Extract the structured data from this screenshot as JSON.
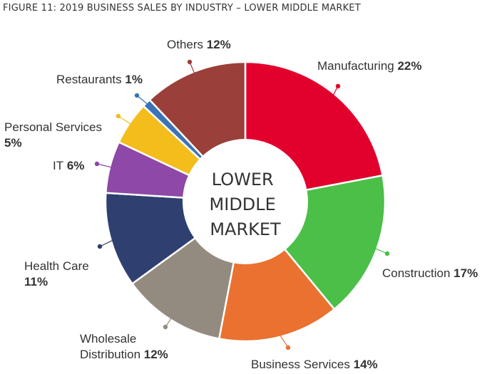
{
  "figure_title": "FIGURE 11: 2019 BUSINESS SALES BY INDUSTRY – LOWER MIDDLE MARKET",
  "chart_data": {
    "type": "pie",
    "variant": "donut",
    "title": "FIGURE 11: 2019 BUSINESS SALES BY INDUSTRY – LOWER MIDDLE MARKET",
    "center_label": [
      "LOWER",
      "MIDDLE",
      "MARKET"
    ],
    "unit": "%",
    "slices": [
      {
        "name": "Manufacturing",
        "label_lines": [
          "Manufacturing"
        ],
        "value": 22,
        "percent_text": "22%",
        "color": "#e2002d"
      },
      {
        "name": "Construction",
        "label_lines": [
          "Construction"
        ],
        "value": 17,
        "percent_text": "17%",
        "color": "#4bbf47"
      },
      {
        "name": "Business Services",
        "label_lines": [
          "Business Services"
        ],
        "value": 14,
        "percent_text": "14%",
        "color": "#ea7130"
      },
      {
        "name": "Wholesale Distribution",
        "label_lines": [
          "Wholesale",
          "Distribution"
        ],
        "value": 12,
        "percent_text": "12%",
        "color": "#948b80"
      },
      {
        "name": "Health Care",
        "label_lines": [
          "Health Care"
        ],
        "value": 11,
        "percent_text": "11%",
        "color": "#2f4070"
      },
      {
        "name": "IT",
        "label_lines": [
          "IT"
        ],
        "value": 6,
        "percent_text": "6%",
        "color": "#8e48a7"
      },
      {
        "name": "Personal Services",
        "label_lines": [
          "Personal Services"
        ],
        "value": 5,
        "percent_text": "5%",
        "color": "#f3bd1c"
      },
      {
        "name": "Restaurants",
        "label_lines": [
          "Restaurants"
        ],
        "value": 1,
        "percent_text": "1%",
        "color": "#3a73b7"
      },
      {
        "name": "Others",
        "label_lines": [
          "Others"
        ],
        "value": 12,
        "percent_text": "12%",
        "color": "#9b3f3b"
      }
    ]
  }
}
